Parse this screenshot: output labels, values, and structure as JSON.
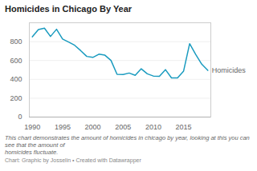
{
  "chart_data": {
    "type": "line",
    "title": "Homicides in Chicago By Year",
    "caption": "This chart demonstrates the amount of homicides in chicago by year, looking at this you can see that the amount of\nhomicides fluctuate.",
    "source": "Chart: Graphic by Josselin • Created with Datawrapper",
    "x": [
      1990,
      1991,
      1992,
      1993,
      1994,
      1995,
      1996,
      1997,
      1998,
      1999,
      2000,
      2001,
      2002,
      2003,
      2004,
      2005,
      2006,
      2007,
      2008,
      2009,
      2010,
      2011,
      2012,
      2013,
      2014,
      2015,
      2016,
      2017,
      2018,
      2019
    ],
    "series": [
      {
        "name": "Homicides",
        "color": "#1a9bbf",
        "values": [
          851,
          928,
          943,
          855,
          931,
          828,
          796,
          761,
          704,
          643,
          633,
          667,
          656,
          601,
          453,
          452,
          467,
          443,
          512,
          459,
          435,
          433,
          503,
          415,
          415,
          488,
          778,
          664,
          561,
          495
        ]
      }
    ],
    "xlim": [
      1989.5,
      2019.5
    ],
    "xticks": [
      1990,
      1995,
      2000,
      2005,
      2010,
      2015
    ],
    "ylim": [
      0,
      1000
    ],
    "yticks": [
      0,
      200,
      400,
      600,
      800
    ],
    "grid": true
  }
}
